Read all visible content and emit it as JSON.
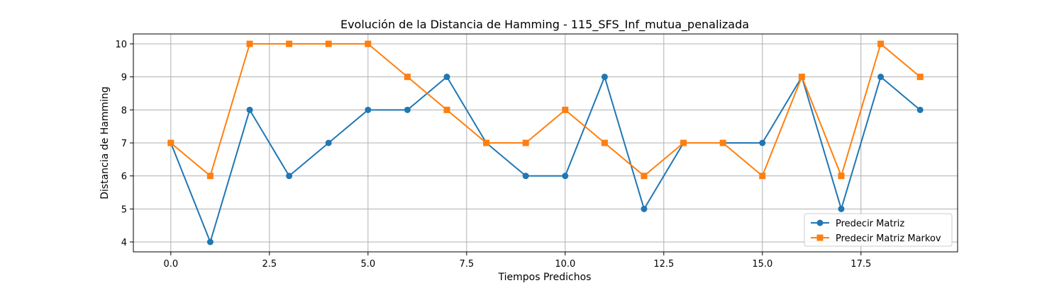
{
  "chart_data": {
    "type": "line",
    "title": "Evolución de la Distancia de Hamming - 115_SFS_Inf_mutua_penalizada",
    "xlabel": "Tiempos Predichos",
    "ylabel": "Distancia de Hamming",
    "x": [
      0,
      1,
      2,
      3,
      4,
      5,
      6,
      7,
      8,
      9,
      10,
      11,
      12,
      13,
      14,
      15,
      16,
      17,
      18,
      19
    ],
    "xlim": [
      -0.95,
      19.95
    ],
    "ylim": [
      3.7,
      10.3
    ],
    "xticks": [
      0.0,
      2.5,
      5.0,
      7.5,
      10.0,
      12.5,
      15.0,
      17.5
    ],
    "xtick_labels": [
      "0.0",
      "2.5",
      "5.0",
      "7.5",
      "10.0",
      "12.5",
      "15.0",
      "17.5"
    ],
    "yticks": [
      4,
      5,
      6,
      7,
      8,
      9,
      10
    ],
    "ytick_labels": [
      "4",
      "5",
      "6",
      "7",
      "8",
      "9",
      "10"
    ],
    "grid": true,
    "legend_position": "lower-right",
    "series": [
      {
        "name": "Predecir Matriz",
        "color": "#1f77b4",
        "marker": "circle",
        "values": [
          7,
          4,
          8,
          6,
          7,
          8,
          8,
          9,
          7,
          6,
          6,
          9,
          5,
          7,
          7,
          7,
          9,
          5,
          9,
          8
        ]
      },
      {
        "name": "Predecir Matriz Markov",
        "color": "#ff7f0e",
        "marker": "square",
        "values": [
          7,
          6,
          10,
          10,
          10,
          10,
          9,
          8,
          7,
          7,
          8,
          7,
          6,
          7,
          7,
          6,
          9,
          6,
          10,
          9
        ]
      }
    ]
  }
}
